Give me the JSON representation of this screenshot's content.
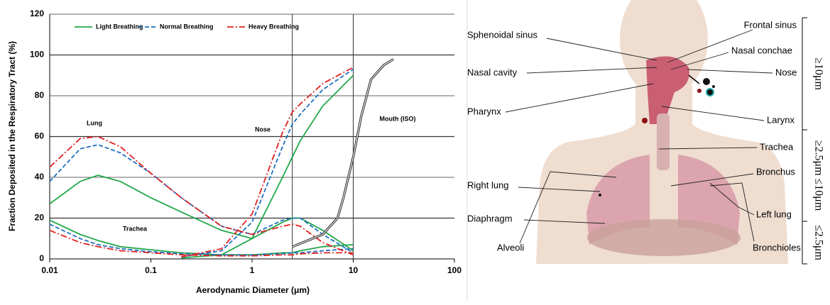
{
  "chart_data": {
    "type": "line",
    "xscale": "log",
    "xlim": [
      0.01,
      100
    ],
    "ylim": [
      0,
      120
    ],
    "xticks": [
      0.01,
      0.1,
      1,
      10,
      100
    ],
    "yticks": [
      0,
      20,
      40,
      60,
      80,
      100,
      120
    ],
    "grid": true,
    "legend": "upper left",
    "xlabel": "Aerodynamic Diameter (μm)",
    "ylabel": "Fraction Deposited in the Respiratory Tract (%)",
    "x": [
      0.01,
      0.02,
      0.03,
      0.05,
      0.1,
      0.2,
      0.5,
      1,
      2,
      2.5,
      3,
      5,
      10
    ],
    "series": [
      {
        "name": "Light Breathing",
        "color": "#22a84a",
        "dash": "solid",
        "lung": [
          27,
          38,
          41,
          38,
          30,
          23,
          14,
          10,
          18,
          20,
          20,
          14,
          4
        ],
        "trachea": [
          19,
          12,
          9,
          6,
          4.5,
          3,
          2,
          2,
          3,
          3,
          4,
          6,
          7
        ],
        "nose": [
          null,
          null,
          null,
          null,
          null,
          0.5,
          2,
          10,
          40,
          50,
          58,
          75,
          90
        ]
      },
      {
        "name": "Normal Breathing",
        "color": "#1f6fc0",
        "dash": "dashed",
        "lung": [
          38,
          54,
          56,
          52,
          42,
          30,
          16,
          12,
          19,
          20,
          20,
          12,
          3
        ],
        "trachea": [
          17,
          10,
          7,
          5,
          3.5,
          2.5,
          2,
          2,
          2.5,
          3,
          3,
          4,
          5
        ],
        "nose": [
          null,
          null,
          null,
          null,
          null,
          1,
          4,
          18,
          55,
          66,
          71,
          83,
          93
        ]
      },
      {
        "name": "Heavy Breathing",
        "color": "#e02020",
        "dash": "dashdot",
        "lung": [
          45,
          59,
          60,
          55,
          42,
          30,
          16,
          12,
          16,
          17,
          16,
          8,
          2
        ],
        "trachea": [
          14,
          8,
          6,
          4,
          3,
          2,
          1.5,
          1.5,
          2,
          2,
          2.5,
          3,
          3
        ],
        "nose": [
          null,
          null,
          null,
          null,
          null,
          1,
          5,
          22,
          62,
          72,
          76,
          86,
          94
        ]
      }
    ],
    "region_labels": {
      "lung": "Lung",
      "trachea": "Trachea",
      "nose": "Nose"
    },
    "mouth": {
      "label": "Mouth (ISO)",
      "x": [
        2.5,
        5,
        7,
        8,
        10,
        12,
        15,
        20,
        25
      ],
      "values": [
        6,
        12,
        20,
        30,
        50,
        70,
        88,
        95,
        98
      ]
    },
    "vlines": [
      2.5,
      10
    ]
  },
  "diagram": {
    "labels": [
      "Frontal sinus",
      "Sphenoidal sinus",
      "Nasal conchae",
      "Nasal cavity",
      "Nose",
      "Pharynx",
      "Larynx",
      "Trachea",
      "Bronchus",
      "Right lung",
      "Diaphragm",
      "Left lung",
      "Alveoli",
      "Bronchioles"
    ],
    "size_ranges": [
      "≥10μm",
      "≥2.5μm ≤10μm",
      "≤2.5μm"
    ]
  }
}
